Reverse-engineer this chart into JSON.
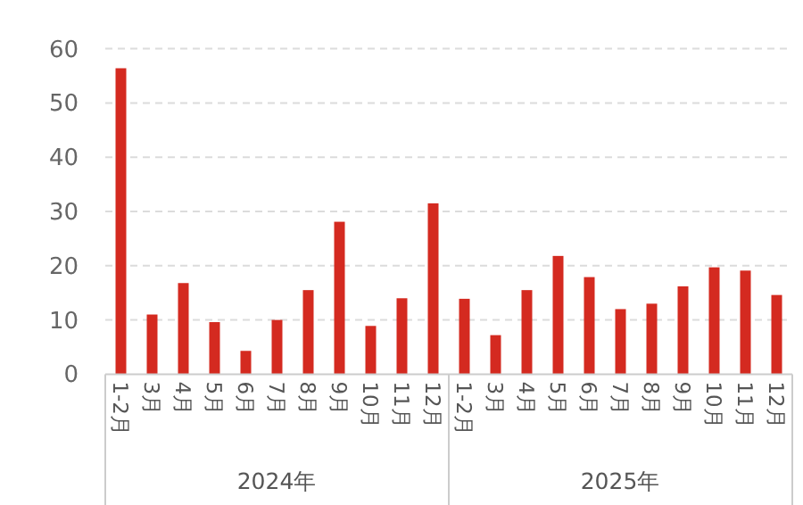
{
  "chart_data": {
    "type": "bar",
    "categories": [
      "1-2月",
      "3月",
      "4月",
      "5月",
      "6月",
      "7月",
      "8月",
      "9月",
      "10月",
      "11月",
      "12月",
      "1-2月",
      "3月",
      "4月",
      "5月",
      "6月",
      "7月",
      "8月",
      "9月",
      "10月",
      "11月",
      "12月"
    ],
    "values": [
      56.4,
      11.0,
      16.8,
      9.6,
      4.3,
      10.0,
      15.5,
      28.1,
      8.9,
      14.0,
      31.5,
      13.9,
      7.2,
      15.5,
      21.8,
      17.9,
      12.0,
      13.0,
      16.2,
      19.7,
      19.1,
      14.6
    ],
    "color": "#d42a20",
    "ylim": [
      0,
      60
    ],
    "yticks": [
      0,
      10,
      20,
      30,
      40,
      50,
      60
    ],
    "grid": "y",
    "annotations": [
      "2024年",
      "2025年"
    ]
  }
}
